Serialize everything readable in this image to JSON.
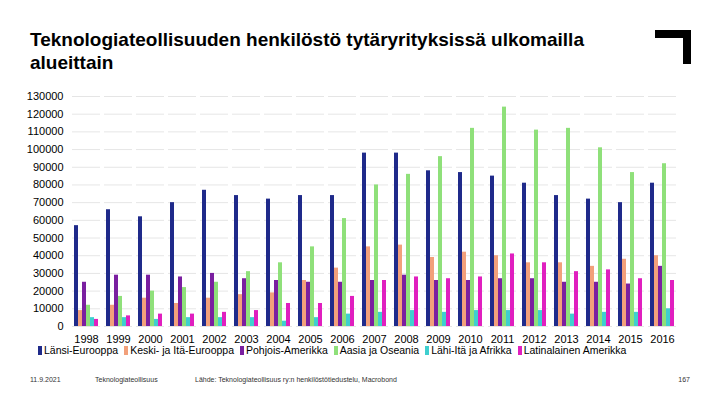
{
  "chart_data": {
    "type": "bar",
    "title": "Teknologiateollisuuden henkilöstö tytäryrityksissä ulkomailla alueittain",
    "x": [
      1998,
      1999,
      2000,
      2001,
      2002,
      2003,
      2004,
      2005,
      2006,
      2007,
      2008,
      2009,
      2010,
      2011,
      2012,
      2013,
      2014,
      2015,
      2016
    ],
    "series": [
      {
        "name": "Länsi-Eurooppa",
        "color": "#1f2a8a",
        "values": [
          57000,
          66000,
          62000,
          70000,
          77000,
          74000,
          72000,
          74000,
          74000,
          98000,
          98000,
          88000,
          87000,
          85000,
          81000,
          74000,
          72000,
          70000,
          81000
        ]
      },
      {
        "name": "Keski- ja Itä-Eurooppa",
        "color": "#f2a07b",
        "values": [
          9000,
          12000,
          16000,
          13000,
          16000,
          18000,
          19000,
          26000,
          33000,
          45000,
          46000,
          39000,
          42000,
          40000,
          36000,
          36000,
          34000,
          38000,
          40000
        ]
      },
      {
        "name": "Pohjois-Amerikka",
        "color": "#7a1fa0",
        "values": [
          25000,
          29000,
          29000,
          28000,
          30000,
          27000,
          26000,
          25000,
          25000,
          26000,
          29000,
          26000,
          26000,
          27000,
          27000,
          25000,
          25000,
          24000,
          34000
        ]
      },
      {
        "name": "Aasia ja Oseania",
        "color": "#8fe07a",
        "values": [
          12000,
          17000,
          20000,
          22000,
          25000,
          31000,
          36000,
          45000,
          61000,
          80000,
          86000,
          96000,
          112000,
          124000,
          111000,
          112000,
          101000,
          87000,
          92000
        ]
      },
      {
        "name": "Lähi-Itä ja Afrikka",
        "color": "#3fcfcf",
        "values": [
          5000,
          5000,
          4000,
          5000,
          5000,
          5000,
          3000,
          5000,
          7000,
          8000,
          9000,
          8000,
          9000,
          9000,
          9000,
          7000,
          8000,
          8000,
          10000
        ]
      },
      {
        "name": "Latinalainen Amerikka",
        "color": "#e01fbf",
        "values": [
          4000,
          6000,
          7000,
          7000,
          8000,
          9000,
          13000,
          13000,
          17000,
          26000,
          28000,
          27000,
          28000,
          41000,
          36000,
          31000,
          32000,
          27000,
          26000
        ]
      }
    ],
    "ylim": [
      0,
      130000
    ],
    "yticks": [
      0,
      10000,
      20000,
      30000,
      40000,
      50000,
      60000,
      70000,
      80000,
      90000,
      100000,
      110000,
      120000,
      130000
    ],
    "grid": true,
    "legend": "bottom"
  },
  "footer": {
    "date": "11.9.2021",
    "organization": "Teknologiateollisuus",
    "source": "Lähde: Teknologiateollisuus ry:n henkilöstötiedustelu, Macrobond",
    "page": "167"
  }
}
